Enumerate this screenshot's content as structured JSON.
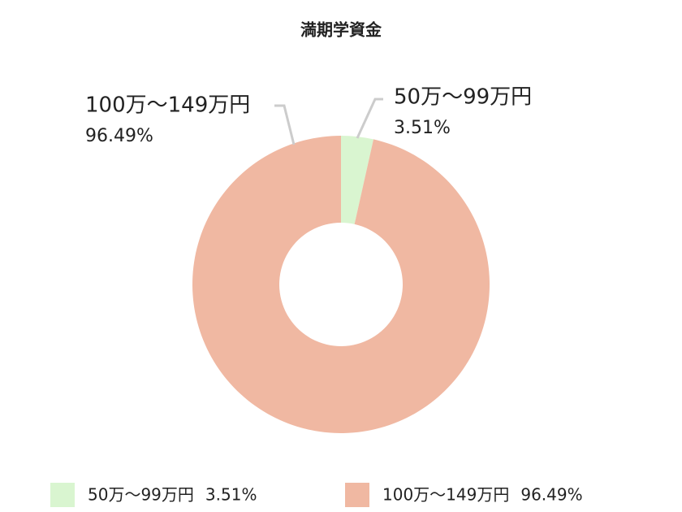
{
  "chart_data": {
    "type": "donut",
    "title": "満期学資金",
    "categories": [
      "50万～99万円",
      "100万～149万円"
    ],
    "values": [
      3.51,
      96.49
    ],
    "value_labels": [
      "3.51%",
      "96.49%"
    ],
    "colors": [
      "#d9f5d0",
      "#f0b8a2"
    ],
    "legend": "bottom"
  }
}
